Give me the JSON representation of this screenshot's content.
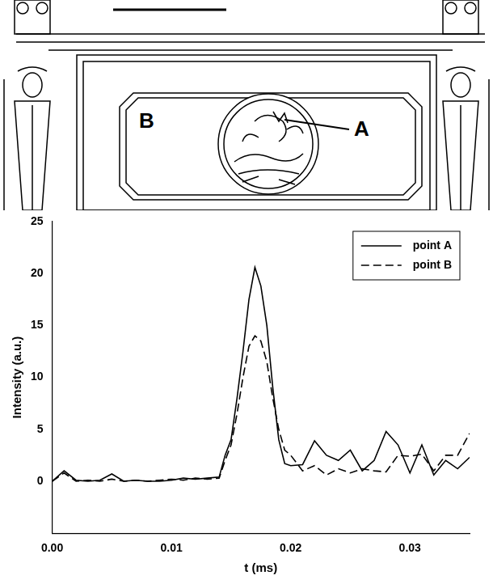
{
  "drawing": {
    "labels": [
      "B",
      "A"
    ]
  },
  "chart_data": {
    "type": "line",
    "x": [
      0,
      0.001,
      0.002,
      0.003,
      0.004,
      0.005,
      0.006,
      0.007,
      0.008,
      0.009,
      0.01,
      0.011,
      0.012,
      0.013,
      0.014,
      0.0145,
      0.015,
      0.0155,
      0.016,
      0.0165,
      0.017,
      0.0175,
      0.018,
      0.0185,
      0.019,
      0.0195,
      0.02,
      0.021,
      0.022,
      0.023,
      0.024,
      0.025,
      0.026,
      0.027,
      0.028,
      0.029,
      0.03,
      0.031,
      0.032,
      0.033,
      0.034,
      0.035
    ],
    "series": [
      {
        "name": "point A",
        "color": "#000000",
        "line_style": "solid",
        "values": [
          0,
          1.0,
          0.1,
          0,
          0.1,
          0.7,
          0,
          0.1,
          0,
          0,
          0.1,
          0.3,
          0.2,
          0.3,
          0.4,
          2.5,
          4.0,
          8.0,
          12.5,
          17.5,
          20.6,
          18.8,
          15.0,
          9.0,
          4.0,
          1.7,
          1.5,
          1.6,
          3.9,
          2.5,
          2.0,
          3.0,
          1.0,
          2.0,
          4.8,
          3.5,
          0.8,
          3.5,
          0.6,
          2.0,
          1.2,
          2.3
        ]
      },
      {
        "name": "point B",
        "color": "#000000",
        "line_style": "dashed",
        "values": [
          0,
          0.8,
          0,
          0.1,
          0,
          0.2,
          0,
          0.1,
          0,
          0.1,
          0.2,
          0.1,
          0.3,
          0.2,
          0.3,
          2.0,
          3.5,
          6.5,
          10.0,
          13.0,
          14.0,
          13.5,
          11.5,
          8.0,
          5.0,
          3.0,
          2.5,
          1.0,
          1.5,
          0.6,
          1.2,
          0.8,
          1.2,
          1.0,
          0.9,
          2.5,
          2.4,
          2.6,
          1.0,
          2.5,
          2.5,
          4.6
        ]
      }
    ],
    "x_label": "t (ms)",
    "y_label": "Intensity (a.u.)",
    "xlim": [
      0,
      0.035
    ],
    "xticks": [
      {
        "value": 0,
        "label": "0.00"
      },
      {
        "value": 0.01,
        "label": "0.01"
      },
      {
        "value": 0.02,
        "label": "0.02"
      },
      {
        "value": 0.03,
        "label": "0.03"
      }
    ],
    "ylim": [
      -5,
      25
    ],
    "yticks": [
      0,
      5,
      10,
      15,
      20,
      25
    ],
    "grid": false,
    "legend": "upper right"
  }
}
